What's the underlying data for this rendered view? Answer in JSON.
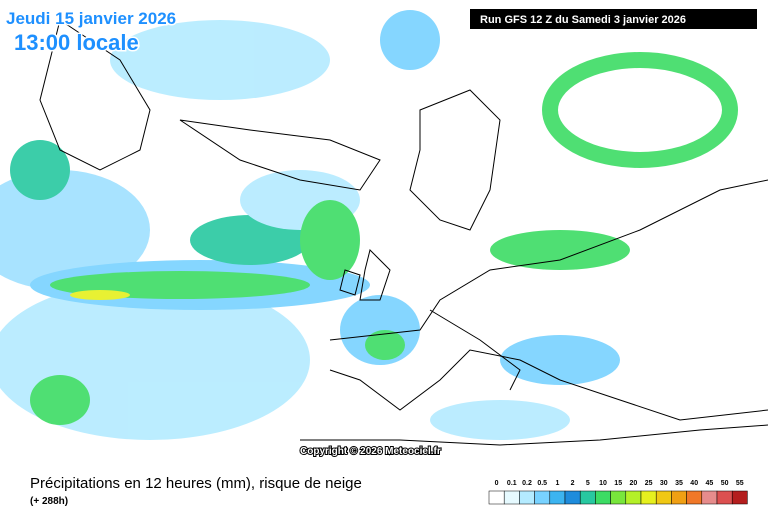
{
  "header": {
    "date": "Jeudi 15 janvier 2026",
    "time": "13:00 locale",
    "run": "Run GFS 12 Z du Samedi 3 janvier 2026"
  },
  "copyright": "Copyright © 2026 Meteociel.fr",
  "footer": {
    "title": "Précipitations en 12 heures (mm), risque de neige",
    "lead": "(+ 288h)"
  },
  "legend": {
    "values": [
      0,
      0.1,
      0.2,
      0.5,
      1,
      2,
      5,
      10,
      15,
      20,
      25,
      30,
      35,
      40,
      45,
      50,
      55
    ],
    "colors": [
      "#ffffff",
      "#e6faff",
      "#b4ebff",
      "#78d2ff",
      "#3cb4f0",
      "#1e8cdc",
      "#28c8a0",
      "#3cdc64",
      "#78e63c",
      "#b4f028",
      "#e6f01e",
      "#f0c814",
      "#f0a014",
      "#f07828",
      "#e68c8c",
      "#dc5050",
      "#b41e1e"
    ]
  }
}
